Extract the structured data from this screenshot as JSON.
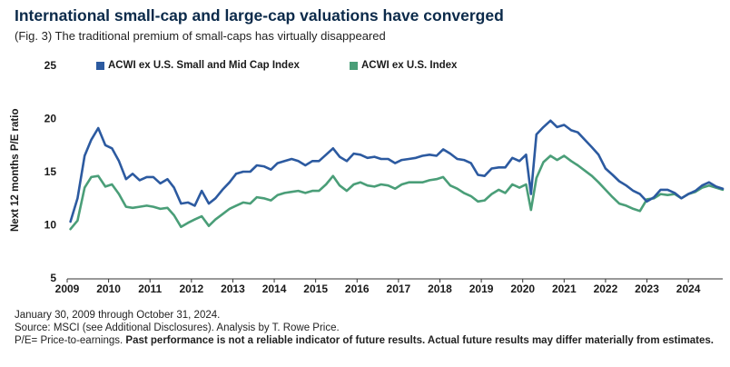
{
  "title": "International small-cap and large-cap valuations have converged",
  "subtitle": "(Fig. 3) The traditional premium of small-caps has virtually disappeared",
  "footer": {
    "line1": "January 30, 2009 through October 31, 2024.",
    "line2": "Source: MSCI (see Additional Disclosures). Analysis by T. Rowe Price.",
    "line3_prefix": "P/E= Price-to-earnings. ",
    "line3_bold": "Past performance is not a reliable indicator of future results. Actual future results may differ materially from estimates."
  },
  "colors": {
    "small_mid": "#2c5aa0",
    "index": "#4a9e78"
  },
  "chart_data": {
    "type": "line",
    "ylabel": "Next 12 months P/E ratio",
    "ylim": [
      5,
      25
    ],
    "yticks": [
      5,
      10,
      15,
      20,
      25
    ],
    "xlim": [
      2009,
      2024.83
    ],
    "xticks": [
      "2009",
      "2010",
      "2011",
      "2012",
      "2013",
      "2014",
      "2015",
      "2016",
      "2017",
      "2018",
      "2019",
      "2020",
      "2021",
      "2022",
      "2023",
      "2024"
    ],
    "grid": false,
    "legend_position": "top",
    "x": [
      2009.08,
      2009.25,
      2009.42,
      2009.58,
      2009.75,
      2009.92,
      2010.08,
      2010.25,
      2010.42,
      2010.58,
      2010.75,
      2010.92,
      2011.08,
      2011.25,
      2011.42,
      2011.58,
      2011.75,
      2011.92,
      2012.08,
      2012.25,
      2012.42,
      2012.58,
      2012.75,
      2012.92,
      2013.08,
      2013.25,
      2013.42,
      2013.58,
      2013.75,
      2013.92,
      2014.08,
      2014.25,
      2014.42,
      2014.58,
      2014.75,
      2014.92,
      2015.08,
      2015.25,
      2015.42,
      2015.58,
      2015.75,
      2015.92,
      2016.08,
      2016.25,
      2016.42,
      2016.58,
      2016.75,
      2016.92,
      2017.08,
      2017.25,
      2017.42,
      2017.58,
      2017.75,
      2017.92,
      2018.08,
      2018.25,
      2018.42,
      2018.58,
      2018.75,
      2018.92,
      2019.08,
      2019.25,
      2019.42,
      2019.58,
      2019.75,
      2019.92,
      2020.08,
      2020.2,
      2020.33,
      2020.5,
      2020.67,
      2020.83,
      2021.0,
      2021.17,
      2021.33,
      2021.5,
      2021.67,
      2021.83,
      2022.0,
      2022.17,
      2022.33,
      2022.5,
      2022.67,
      2022.83,
      2023.0,
      2023.17,
      2023.33,
      2023.5,
      2023.67,
      2023.83,
      2024.0,
      2024.17,
      2024.33,
      2024.5,
      2024.67,
      2024.83
    ],
    "series": [
      {
        "name": "ACWI ex U.S. Small and Mid Cap Index",
        "values": [
          10.3,
          12.5,
          16.5,
          18.0,
          19.1,
          17.5,
          17.2,
          16.0,
          14.3,
          14.8,
          14.2,
          14.5,
          14.5,
          13.9,
          14.3,
          13.5,
          12.0,
          12.1,
          11.8,
          13.2,
          12.0,
          12.5,
          13.3,
          14.0,
          14.8,
          15.0,
          15.0,
          15.6,
          15.5,
          15.2,
          15.8,
          16.0,
          16.2,
          16.0,
          15.6,
          16.0,
          16.0,
          16.6,
          17.2,
          16.4,
          16.0,
          16.7,
          16.6,
          16.3,
          16.4,
          16.2,
          16.2,
          15.8,
          16.1,
          16.2,
          16.3,
          16.5,
          16.6,
          16.5,
          17.1,
          16.7,
          16.2,
          16.1,
          15.8,
          14.7,
          14.6,
          15.3,
          15.4,
          15.4,
          16.3,
          16.0,
          16.6,
          12.9,
          18.5,
          19.2,
          19.8,
          19.2,
          19.4,
          18.9,
          18.7,
          18.0,
          17.3,
          16.6,
          15.3,
          14.7,
          14.1,
          13.7,
          13.2,
          12.9,
          12.2,
          12.6,
          13.3,
          13.3,
          13.0,
          12.5,
          12.9,
          13.2,
          13.7,
          14.0,
          13.6,
          13.4
        ]
      },
      {
        "name": "ACWI ex U.S. Index",
        "values": [
          9.6,
          10.4,
          13.5,
          14.5,
          14.6,
          13.6,
          13.8,
          12.9,
          11.7,
          11.6,
          11.7,
          11.8,
          11.7,
          11.5,
          11.6,
          10.9,
          9.8,
          10.2,
          10.5,
          10.8,
          9.9,
          10.5,
          11.0,
          11.5,
          11.8,
          12.1,
          12.0,
          12.6,
          12.5,
          12.3,
          12.8,
          13.0,
          13.1,
          13.2,
          13.0,
          13.2,
          13.2,
          13.8,
          14.6,
          13.7,
          13.2,
          13.8,
          14.0,
          13.7,
          13.6,
          13.8,
          13.7,
          13.4,
          13.8,
          14.0,
          14.0,
          14.0,
          14.2,
          14.3,
          14.5,
          13.7,
          13.4,
          13.0,
          12.7,
          12.2,
          12.3,
          12.9,
          13.3,
          13.0,
          13.8,
          13.5,
          13.8,
          11.4,
          14.4,
          15.9,
          16.5,
          16.1,
          16.5,
          16.0,
          15.6,
          15.1,
          14.6,
          14.0,
          13.3,
          12.6,
          12.0,
          11.8,
          11.5,
          11.3,
          12.4,
          12.5,
          12.9,
          12.8,
          12.9,
          12.5,
          12.9,
          13.1,
          13.5,
          13.7,
          13.5,
          13.3
        ]
      }
    ]
  }
}
